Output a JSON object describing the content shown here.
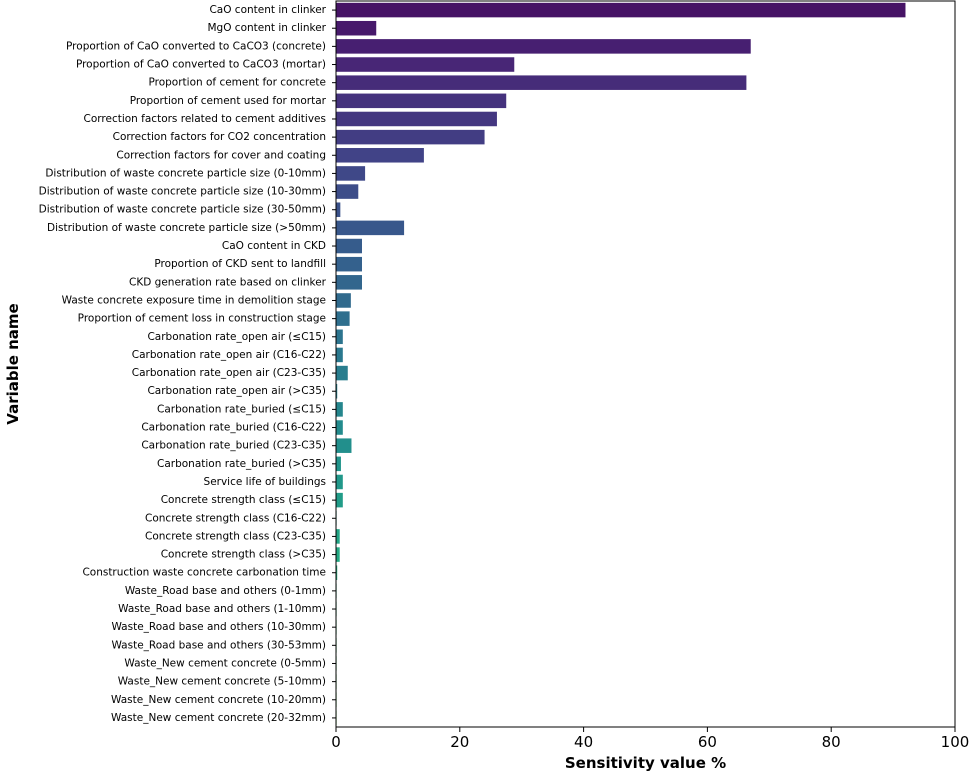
{
  "chart_data": {
    "type": "bar",
    "orientation": "horizontal",
    "title": "",
    "xlabel": "Sensitivity value %",
    "ylabel": "Variable name",
    "xlim": [
      0,
      100
    ],
    "xticks": [
      0,
      20,
      40,
      60,
      80,
      100
    ],
    "grid": false,
    "colormap": "viridis (top to bottom)",
    "categories": [
      "CaO content in clinker",
      "MgO content in clinker",
      "Proportion of CaO converted to CaCO3 (concrete)",
      "Proportion of CaO converted to CaCO3 (mortar)",
      "Proportion of cement for concrete",
      "Proportion of cement used for mortar",
      "Correction factors related to cement additives",
      "Correction factors for CO2 concentration",
      "Correction factors for cover and coating",
      "Distribution of waste concrete particle size (0-10mm)",
      "Distribution of waste concrete particle size (10-30mm)",
      "Distribution of waste concrete particle size (30-50mm)",
      "Distribution of waste concrete particle size (>50mm)",
      "CaO content in CKD",
      "Proportion of CKD sent to landfill",
      "CKD generation rate based on clinker",
      "Waste concrete exposure time in demolition stage",
      "Proportion of cement loss in construction stage",
      "Carbonation rate_open air (≤C15)",
      "Carbonation rate_open air (C16-C22)",
      "Carbonation rate_open air (C23-C35)",
      "Carbonation rate_open air (>C35)",
      "Carbonation rate_buried (≤C15)",
      "Carbonation rate_buried (C16-C22)",
      "Carbonation rate_buried (C23-C35)",
      "Carbonation rate_buried (>C35)",
      "Service life of buildings",
      "Concrete strength class (≤C15)",
      "Concrete strength class (C16-C22)",
      "Concrete strength class (C23-C35)",
      "Concrete strength class (>C35)",
      "Construction waste concrete carbonation time",
      "Waste_Road base and others (0-1mm)",
      "Waste_Road base and others (1-10mm)",
      "Waste_Road base and others (10-30mm)",
      "Waste_Road base and others (30-53mm)",
      "Waste_New cement concrete (0-5mm)",
      "Waste_New cement concrete (5-10mm)",
      "Waste_New cement concrete (10-20mm)",
      "Waste_New cement concrete (20-32mm)"
    ],
    "values": [
      92.0,
      6.5,
      67.0,
      28.8,
      66.3,
      27.5,
      26.0,
      24.0,
      14.2,
      4.7,
      3.6,
      0.7,
      11.0,
      4.2,
      4.2,
      4.2,
      2.4,
      2.2,
      1.1,
      1.1,
      1.9,
      0.2,
      1.1,
      1.1,
      2.5,
      0.8,
      1.1,
      1.1,
      0.1,
      0.6,
      0.6,
      0.2,
      0.1,
      0.1,
      0.1,
      0.1,
      0.1,
      0.1,
      0.1,
      0.1
    ]
  }
}
